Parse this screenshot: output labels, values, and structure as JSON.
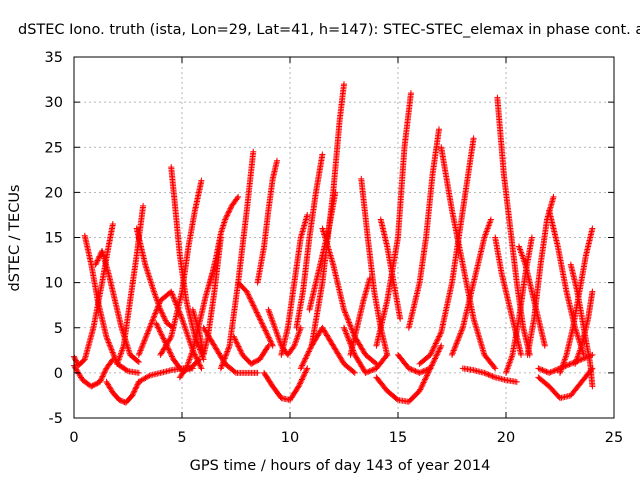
{
  "chart_data": {
    "type": "scatter",
    "title": "dSTEC Iono. truth (ista, Lon=29, Lat=41, h=147): STEC-STEC_elemax in phase cont. a",
    "xlabel": "GPS time / hours of day 143 of year 2014",
    "ylabel": "dSTEC  / TECUs",
    "xlim": [
      0,
      25
    ],
    "ylim": [
      -5,
      35
    ],
    "x_ticks": [
      "0",
      "5",
      "10",
      "15",
      "20",
      "25"
    ],
    "y_ticks": [
      "-5",
      "0",
      "5",
      "10",
      "15",
      "20",
      "25",
      "30",
      "35"
    ],
    "grid": true,
    "marker": "+",
    "color": "#ff0000",
    "series": [
      {
        "name": "arc01",
        "x": [
          0.0,
          0.2,
          0.5,
          0.9,
          1.3,
          1.6,
          1.8
        ],
        "y": [
          1.8,
          0.8,
          1.5,
          5.0,
          10.0,
          14.0,
          16.5
        ]
      },
      {
        "name": "arc02",
        "x": [
          0.5,
          0.8,
          1.1,
          1.5,
          2.0,
          2.5,
          3.0
        ],
        "y": [
          15.2,
          12.0,
          8.0,
          4.0,
          1.0,
          0.2,
          0.0
        ]
      },
      {
        "name": "arc03",
        "x": [
          0.0,
          0.4,
          0.8,
          1.2,
          1.5,
          1.8
        ],
        "y": [
          0.8,
          -0.8,
          -1.5,
          -1.0,
          0.5,
          1.5
        ]
      },
      {
        "name": "arc04",
        "x": [
          1.0,
          1.3,
          1.6,
          1.9,
          2.2,
          2.6,
          3.0
        ],
        "y": [
          12.0,
          13.5,
          11.0,
          8.0,
          5.0,
          2.0,
          1.2
        ]
      },
      {
        "name": "arc05",
        "x": [
          1.5,
          1.8,
          2.1,
          2.4,
          2.7,
          3.0
        ],
        "y": [
          -1.0,
          -2.2,
          -3.0,
          -3.3,
          -2.5,
          -1.0
        ]
      },
      {
        "name": "arc06",
        "x": [
          2.0,
          2.3,
          2.6,
          2.9,
          3.2
        ],
        "y": [
          1.0,
          3.0,
          8.0,
          13.0,
          18.5
        ]
      },
      {
        "name": "arc07",
        "x": [
          2.9,
          3.3,
          3.7,
          4.0,
          4.3,
          4.6
        ],
        "y": [
          16.0,
          12.0,
          9.0,
          7.0,
          5.5,
          5.0
        ]
      },
      {
        "name": "arc08",
        "x": [
          3.0,
          3.5,
          4.0,
          4.5,
          5.0,
          5.5
        ],
        "y": [
          -1.0,
          -0.3,
          0.0,
          0.3,
          0.5,
          0.5
        ]
      },
      {
        "name": "arc09",
        "x": [
          3.0,
          3.5,
          4.0,
          4.5,
          5.0,
          5.5,
          5.9
        ],
        "y": [
          2.0,
          5.0,
          8.0,
          9.0,
          6.0,
          2.5,
          0.5
        ]
      },
      {
        "name": "arc10",
        "x": [
          4.5,
          4.7,
          4.9,
          5.2,
          5.6,
          6.0
        ],
        "y": [
          22.8,
          18.0,
          13.0,
          8.0,
          4.0,
          1.5
        ]
      },
      {
        "name": "arc11",
        "x": [
          3.8,
          4.2,
          4.6,
          5.0,
          5.4,
          5.8
        ],
        "y": [
          5.5,
          3.5,
          1.5,
          0.2,
          0.5,
          1.5
        ]
      },
      {
        "name": "arc12",
        "x": [
          4.0,
          4.5,
          5.0,
          5.3,
          5.6,
          5.9
        ],
        "y": [
          2.0,
          4.0,
          9.0,
          14.0,
          18.0,
          21.3
        ]
      },
      {
        "name": "arc13",
        "x": [
          4.9,
          5.2,
          5.5,
          5.8,
          6.1,
          6.4
        ],
        "y": [
          -0.5,
          0.5,
          2.5,
          5.5,
          8.5,
          11.0
        ]
      },
      {
        "name": "arc14",
        "x": [
          5.5,
          5.8,
          6.0,
          6.2,
          6.5,
          6.8
        ],
        "y": [
          7.0,
          4.5,
          2.0,
          4.0,
          9.0,
          15.0
        ]
      },
      {
        "name": "arc15",
        "x": [
          6.3,
          6.6,
          6.8,
          7.0,
          7.3,
          7.6
        ],
        "y": [
          10.0,
          13.0,
          15.5,
          17.0,
          18.5,
          19.5
        ]
      },
      {
        "name": "arc16",
        "x": [
          6.0,
          6.5,
          7.0,
          7.5,
          8.0,
          8.5
        ],
        "y": [
          5.0,
          3.0,
          1.0,
          0.0,
          0.0,
          0.0
        ]
      },
      {
        "name": "arc17",
        "x": [
          6.8,
          7.2,
          7.6,
          8.0,
          8.3
        ],
        "y": [
          0.5,
          3.0,
          10.0,
          18.0,
          24.5
        ]
      },
      {
        "name": "arc18",
        "x": [
          7.4,
          7.8,
          8.2,
          8.6,
          9.0
        ],
        "y": [
          4.0,
          2.0,
          1.0,
          1.5,
          3.0
        ]
      },
      {
        "name": "arc19",
        "x": [
          7.6,
          8.0,
          8.4,
          8.8,
          9.2
        ],
        "y": [
          10.0,
          9.0,
          7.0,
          5.0,
          3.0
        ]
      },
      {
        "name": "arc20",
        "x": [
          8.5,
          8.8,
          9.0,
          9.2,
          9.4
        ],
        "y": [
          10.0,
          14.0,
          18.0,
          21.5,
          23.5
        ]
      },
      {
        "name": "arc21",
        "x": [
          9.0,
          9.3,
          9.6,
          9.9,
          10.2,
          10.5
        ],
        "y": [
          7.0,
          5.0,
          3.0,
          2.0,
          3.0,
          5.0
        ]
      },
      {
        "name": "arc22",
        "x": [
          8.8,
          9.2,
          9.6,
          10.0,
          10.4,
          10.8
        ],
        "y": [
          0.0,
          -1.5,
          -2.8,
          -3.0,
          -1.5,
          0.5
        ]
      },
      {
        "name": "arc23",
        "x": [
          9.6,
          9.9,
          10.2,
          10.5,
          10.8
        ],
        "y": [
          2.0,
          5.0,
          10.0,
          15.0,
          17.5
        ]
      },
      {
        "name": "arc24",
        "x": [
          10.3,
          10.6,
          10.9,
          11.2,
          11.5
        ],
        "y": [
          5.0,
          9.0,
          15.0,
          20.0,
          24.2
        ]
      },
      {
        "name": "arc25",
        "x": [
          10.9,
          11.2,
          11.5,
          11.8,
          12.1
        ],
        "y": [
          7.0,
          10.0,
          13.0,
          16.0,
          20.0
        ]
      },
      {
        "name": "arc26",
        "x": [
          11.0,
          11.5,
          12.0,
          12.3,
          12.5
        ],
        "y": [
          3.0,
          10.0,
          20.0,
          28.0,
          32.0
        ]
      },
      {
        "name": "arc27",
        "x": [
          10.5,
          11.0,
          11.5,
          12.0,
          12.5,
          13.0
        ],
        "y": [
          0.5,
          3.0,
          5.0,
          3.0,
          1.0,
          0.0
        ]
      },
      {
        "name": "arc28",
        "x": [
          11.5,
          12.0,
          12.5,
          13.0,
          13.5,
          14.0
        ],
        "y": [
          16.0,
          12.0,
          7.0,
          4.0,
          2.0,
          1.0
        ]
      },
      {
        "name": "arc29",
        "x": [
          12.5,
          13.0,
          13.5,
          14.0,
          14.5
        ],
        "y": [
          5.0,
          2.0,
          0.0,
          0.5,
          2.0
        ]
      },
      {
        "name": "arc30",
        "x": [
          13.3,
          13.6,
          13.9,
          14.2,
          14.5
        ],
        "y": [
          21.5,
          15.0,
          9.0,
          5.0,
          2.0
        ]
      },
      {
        "name": "arc31",
        "x": [
          12.8,
          13.1,
          13.4,
          13.7
        ],
        "y": [
          2.0,
          5.0,
          8.0,
          10.5
        ]
      },
      {
        "name": "arc32",
        "x": [
          14.0,
          14.5,
          15.0,
          15.5,
          16.0,
          16.5
        ],
        "y": [
          -0.5,
          -2.0,
          -3.0,
          -3.2,
          -2.0,
          0.5
        ]
      },
      {
        "name": "arc33",
        "x": [
          14.0,
          14.5,
          15.0,
          15.3,
          15.6
        ],
        "y": [
          3.0,
          8.0,
          15.0,
          25.0,
          31.0
        ]
      },
      {
        "name": "arc34",
        "x": [
          14.2,
          14.5,
          14.8,
          15.1
        ],
        "y": [
          17.0,
          14.0,
          10.0,
          6.0
        ]
      },
      {
        "name": "arc35",
        "x": [
          15.0,
          15.5,
          16.0,
          16.5,
          17.0
        ],
        "y": [
          2.0,
          0.5,
          0.0,
          0.5,
          3.0
        ]
      },
      {
        "name": "arc36",
        "x": [
          15.5,
          16.0,
          16.3,
          16.6,
          16.9
        ],
        "y": [
          5.0,
          10.0,
          15.0,
          22.0,
          27.0
        ]
      },
      {
        "name": "arc37",
        "x": [
          16.0,
          16.5,
          17.0,
          17.5,
          18.0,
          18.5
        ],
        "y": [
          1.0,
          2.0,
          4.5,
          10.0,
          18.0,
          26.0
        ]
      },
      {
        "name": "arc38",
        "x": [
          17.0,
          17.5,
          18.0,
          18.5,
          19.0,
          19.5
        ],
        "y": [
          25.0,
          18.0,
          12.0,
          6.0,
          2.0,
          0.5
        ]
      },
      {
        "name": "arc39",
        "x": [
          17.5,
          18.0,
          18.5,
          19.0,
          19.3
        ],
        "y": [
          2.0,
          5.0,
          10.0,
          15.0,
          17.0
        ]
      },
      {
        "name": "arc40",
        "x": [
          18.0,
          18.5,
          19.0,
          19.5,
          20.0,
          20.5
        ],
        "y": [
          0.5,
          0.3,
          0.0,
          -0.5,
          -0.8,
          -1.0
        ]
      },
      {
        "name": "arc41",
        "x": [
          19.6,
          19.9,
          20.2,
          20.5,
          20.8,
          21.1
        ],
        "y": [
          30.5,
          22.0,
          16.0,
          10.0,
          5.0,
          2.0
        ]
      },
      {
        "name": "arc42",
        "x": [
          19.5,
          19.8,
          20.1,
          20.4,
          20.7
        ],
        "y": [
          15.0,
          11.0,
          8.0,
          5.0,
          2.0
        ]
      },
      {
        "name": "arc43",
        "x": [
          20.0,
          20.3,
          20.6,
          20.9,
          21.2
        ],
        "y": [
          0.0,
          2.0,
          6.0,
          11.0,
          15.0
        ]
      },
      {
        "name": "arc44",
        "x": [
          20.6,
          20.9,
          21.2,
          21.5,
          21.8
        ],
        "y": [
          14.0,
          12.0,
          9.0,
          6.0,
          3.0
        ]
      },
      {
        "name": "arc45",
        "x": [
          21.0,
          21.3,
          21.6,
          21.9,
          22.2
        ],
        "y": [
          2.0,
          6.0,
          12.0,
          17.0,
          19.5
        ]
      },
      {
        "name": "arc46",
        "x": [
          21.5,
          22.0,
          22.5,
          23.0,
          23.5,
          24.0
        ],
        "y": [
          -0.5,
          -1.5,
          -2.8,
          -2.5,
          -1.0,
          0.5
        ]
      },
      {
        "name": "arc47",
        "x": [
          22.0,
          22.4,
          22.8,
          23.2,
          23.6
        ],
        "y": [
          18.0,
          14.0,
          9.0,
          5.0,
          2.0
        ]
      },
      {
        "name": "arc48",
        "x": [
          22.5,
          22.8,
          23.1,
          23.4,
          23.7,
          24.0
        ],
        "y": [
          0.0,
          2.0,
          5.0,
          9.0,
          13.0,
          16.0
        ]
      },
      {
        "name": "arc49",
        "x": [
          23.0,
          23.3,
          23.6,
          23.9,
          24.0
        ],
        "y": [
          12.0,
          9.0,
          5.0,
          1.0,
          -1.5
        ]
      },
      {
        "name": "arc50",
        "x": [
          23.2,
          23.5,
          23.8,
          24.0
        ],
        "y": [
          1.0,
          3.0,
          6.0,
          9.0
        ]
      },
      {
        "name": "arc51",
        "x": [
          21.5,
          22.0,
          22.5,
          23.0,
          23.5,
          24.0
        ],
        "y": [
          0.5,
          0.0,
          0.5,
          1.0,
          1.5,
          2.0
        ]
      }
    ]
  }
}
